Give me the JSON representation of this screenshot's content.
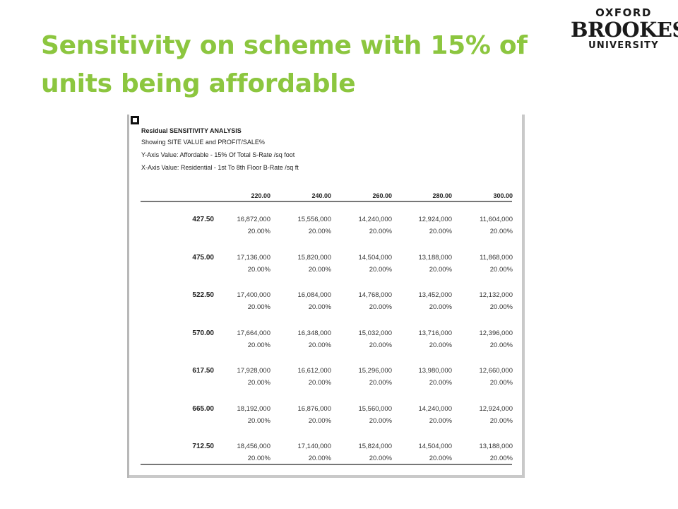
{
  "slide": {
    "title": "Sensitivity on scheme with 15% of units being affordable"
  },
  "logo": {
    "line1": "OXFORD",
    "line2": "BROOKES",
    "line3": "UNIVERSITY"
  },
  "report": {
    "heading": "Residual SENSITIVITY ANALYSIS",
    "showing": "Showing SITE VALUE and PROFIT/SALE%",
    "y_axis": "Y-Axis Value: Affordable - 15% Of Total S-Rate /sq foot",
    "x_axis": "X-Axis Value: Residential - 1st To 8th Floor B-Rate /sq ft",
    "columns": [
      "220.00",
      "240.00",
      "260.00",
      "280.00",
      "300.00"
    ],
    "rows": [
      {
        "label": "427.50",
        "values": [
          "16,872,000",
          "15,556,000",
          "14,240,000",
          "12,924,000",
          "11,604,000"
        ],
        "percents": [
          "20.00%",
          "20.00%",
          "20.00%",
          "20.00%",
          "20.00%"
        ]
      },
      {
        "label": "475.00",
        "values": [
          "17,136,000",
          "15,820,000",
          "14,504,000",
          "13,188,000",
          "11,868,000"
        ],
        "percents": [
          "20.00%",
          "20.00%",
          "20.00%",
          "20.00%",
          "20.00%"
        ]
      },
      {
        "label": "522.50",
        "values": [
          "17,400,000",
          "16,084,000",
          "14,768,000",
          "13,452,000",
          "12,132,000"
        ],
        "percents": [
          "20.00%",
          "20.00%",
          "20.00%",
          "20.00%",
          "20.00%"
        ]
      },
      {
        "label": "570.00",
        "values": [
          "17,664,000",
          "16,348,000",
          "15,032,000",
          "13,716,000",
          "12,396,000"
        ],
        "percents": [
          "20.00%",
          "20.00%",
          "20.00%",
          "20.00%",
          "20.00%"
        ]
      },
      {
        "label": "617.50",
        "values": [
          "17,928,000",
          "16,612,000",
          "15,296,000",
          "13,980,000",
          "12,660,000"
        ],
        "percents": [
          "20.00%",
          "20.00%",
          "20.00%",
          "20.00%",
          "20.00%"
        ]
      },
      {
        "label": "665.00",
        "values": [
          "18,192,000",
          "16,876,000",
          "15,560,000",
          "14,240,000",
          "12,924,000"
        ],
        "percents": [
          "20.00%",
          "20.00%",
          "20.00%",
          "20.00%",
          "20.00%"
        ]
      },
      {
        "label": "712.50",
        "values": [
          "18,456,000",
          "17,140,000",
          "15,824,000",
          "14,504,000",
          "13,188,000"
        ],
        "percents": [
          "20.00%",
          "20.00%",
          "20.00%",
          "20.00%",
          "20.00%"
        ]
      }
    ]
  }
}
